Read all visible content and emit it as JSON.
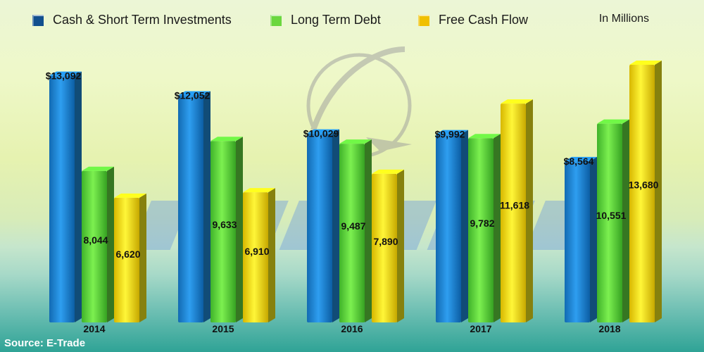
{
  "chart_data": {
    "type": "bar",
    "units_label": "In Millions",
    "source": "Source: E-Trade",
    "categories": [
      "2014",
      "2015",
      "2016",
      "2017",
      "2018"
    ],
    "series": [
      {
        "name": "Cash & Short Term Investments",
        "color": "#1f8ad8",
        "values": [
          13092,
          12052,
          10029,
          9992,
          8564
        ],
        "labels": [
          "$13,092",
          "$12,052",
          "$10,029",
          "$9,992",
          "$8,564"
        ]
      },
      {
        "name": "Long Term Debt",
        "color": "#62d83e",
        "values": [
          8044,
          9633,
          9487,
          9782,
          10551
        ],
        "labels": [
          "8,044",
          "9,633",
          "9,487",
          "9,782",
          "10,551"
        ]
      },
      {
        "name": "Free Cash Flow",
        "color": "#f4ea1a",
        "values": [
          6620,
          6910,
          7890,
          11618,
          13680
        ],
        "labels": [
          "6,620",
          "6,910",
          "7,890",
          "11,618",
          "13,680"
        ]
      }
    ],
    "ylim": [
      0,
      14500
    ],
    "grid": false,
    "legend_position": "top",
    "background_watermark": "boeing-logo"
  }
}
